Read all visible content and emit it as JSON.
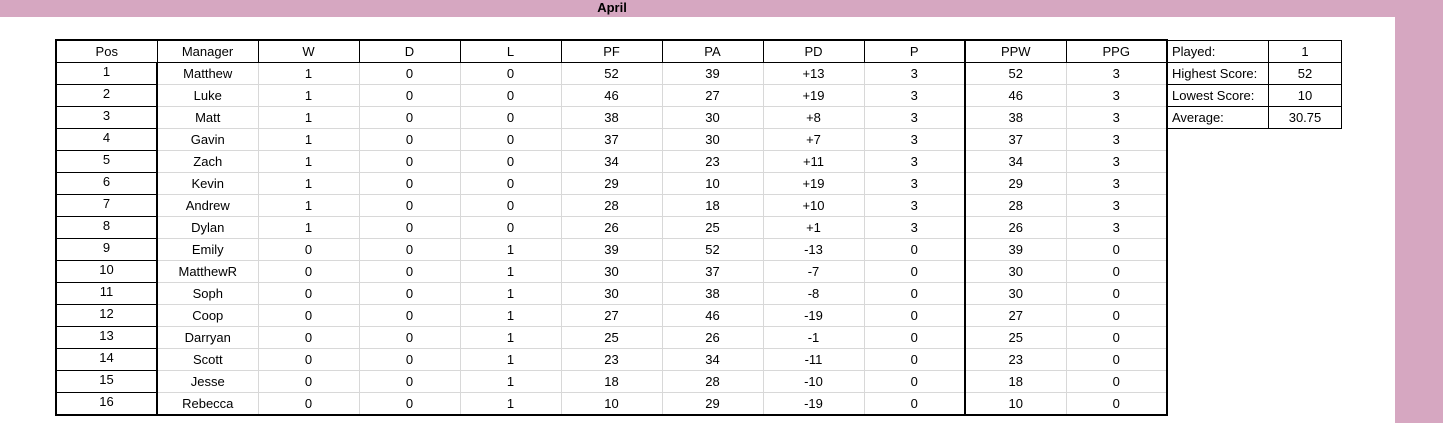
{
  "sheet": {
    "title": "April"
  },
  "columns": [
    "Pos",
    "Manager",
    "W",
    "D",
    "L",
    "PF",
    "PA",
    "PD",
    "P",
    "PPW",
    "PPG"
  ],
  "rows": [
    [
      "1",
      "Matthew",
      "1",
      "0",
      "0",
      "52",
      "39",
      "+13",
      "3",
      "52",
      "3"
    ],
    [
      "2",
      "Luke",
      "1",
      "0",
      "0",
      "46",
      "27",
      "+19",
      "3",
      "46",
      "3"
    ],
    [
      "3",
      "Matt",
      "1",
      "0",
      "0",
      "38",
      "30",
      "+8",
      "3",
      "38",
      "3"
    ],
    [
      "4",
      "Gavin",
      "1",
      "0",
      "0",
      "37",
      "30",
      "+7",
      "3",
      "37",
      "3"
    ],
    [
      "5",
      "Zach",
      "1",
      "0",
      "0",
      "34",
      "23",
      "+11",
      "3",
      "34",
      "3"
    ],
    [
      "6",
      "Kevin",
      "1",
      "0",
      "0",
      "29",
      "10",
      "+19",
      "3",
      "29",
      "3"
    ],
    [
      "7",
      "Andrew",
      "1",
      "0",
      "0",
      "28",
      "18",
      "+10",
      "3",
      "28",
      "3"
    ],
    [
      "8",
      "Dylan",
      "1",
      "0",
      "0",
      "26",
      "25",
      "+1",
      "3",
      "26",
      "3"
    ],
    [
      "9",
      "Emily",
      "0",
      "0",
      "1",
      "39",
      "52",
      "-13",
      "0",
      "39",
      "0"
    ],
    [
      "10",
      "MatthewR",
      "0",
      "0",
      "1",
      "30",
      "37",
      "-7",
      "0",
      "30",
      "0"
    ],
    [
      "11",
      "Soph",
      "0",
      "0",
      "1",
      "30",
      "38",
      "-8",
      "0",
      "30",
      "0"
    ],
    [
      "12",
      "Coop",
      "0",
      "0",
      "1",
      "27",
      "46",
      "-19",
      "0",
      "27",
      "0"
    ],
    [
      "13",
      "Darryan",
      "0",
      "0",
      "1",
      "25",
      "26",
      "-1",
      "0",
      "25",
      "0"
    ],
    [
      "14",
      "Scott",
      "0",
      "0",
      "1",
      "23",
      "34",
      "-11",
      "0",
      "23",
      "0"
    ],
    [
      "15",
      "Jesse",
      "0",
      "0",
      "1",
      "18",
      "28",
      "-10",
      "0",
      "18",
      "0"
    ],
    [
      "16",
      "Rebecca",
      "0",
      "0",
      "1",
      "10",
      "29",
      "-19",
      "0",
      "10",
      "0"
    ]
  ],
  "stats": [
    {
      "label": "Played:",
      "value": "1"
    },
    {
      "label": "Highest Score:",
      "value": "52"
    },
    {
      "label": "Lowest Score:",
      "value": "10"
    },
    {
      "label": "Average:",
      "value": "30.75"
    }
  ],
  "colors": {
    "band": "#d6a7c1",
    "grid": "#d8d8d8",
    "border": "#000000"
  }
}
